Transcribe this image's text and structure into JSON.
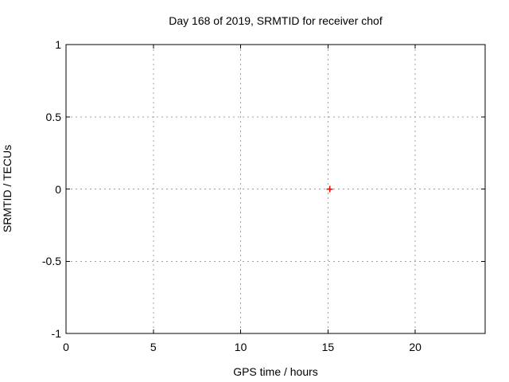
{
  "chart_data": {
    "type": "scatter",
    "title": "Day 168 of 2019, SRMTID for receiver chof",
    "xlabel": "GPS time / hours",
    "ylabel": "SRMTID / TECUs",
    "xlim": [
      0,
      24
    ],
    "ylim": [
      -1,
      1
    ],
    "x_ticks": [
      0,
      5,
      10,
      15,
      20
    ],
    "x_tick_labels": [
      "0",
      "5",
      "10",
      "15",
      "20"
    ],
    "y_ticks": [
      -1,
      -0.5,
      0,
      0.5,
      1
    ],
    "y_tick_labels": [
      "-1",
      "-0.5",
      "0",
      "0.5",
      "1"
    ],
    "grid": true,
    "legend": "none",
    "series": [
      {
        "name": "SRMTID",
        "marker": "plus",
        "color": "#ff0000",
        "points": [
          {
            "x": 15.1,
            "y": 0.0
          }
        ]
      }
    ],
    "colors": {
      "background": "#ffffff",
      "border": "#000000",
      "grid": "#a0a0a0",
      "text": "#000000"
    }
  }
}
